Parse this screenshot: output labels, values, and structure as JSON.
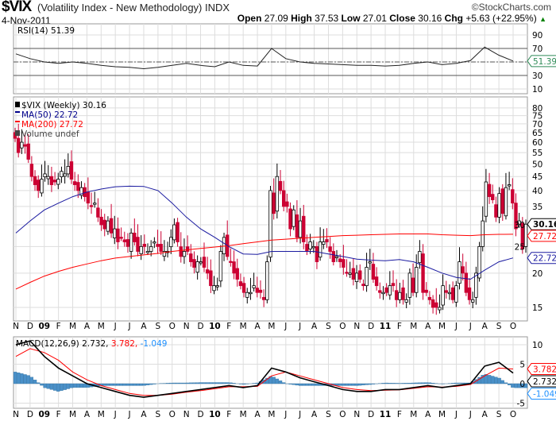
{
  "header": {
    "symbol": "$VIX",
    "description": "(Volatility Index - New Methodology) INDX",
    "date": "4-Nov-2011",
    "copyright": "©StockCharts.com",
    "open_label": "Open",
    "open": "27.09",
    "high_label": "High",
    "high": "37.53",
    "low_label": "Low",
    "low": "27.01",
    "close_label": "Close",
    "close": "30.16",
    "chg_label": "Chg",
    "chg": "+5.63 (+22.95%)",
    "chg_arrow": "▲",
    "up_color": "#008000"
  },
  "chart_data": [
    {
      "type": "line",
      "title": "RSI(14) 51.39",
      "ylim": [
        0,
        100
      ],
      "yticks": [
        90,
        70,
        30,
        10
      ],
      "ref_lines": [
        70,
        50,
        30
      ],
      "last": "51.39",
      "months": [
        "N",
        "D",
        "09",
        "F",
        "M",
        "A",
        "M",
        "J",
        "J",
        "A",
        "S",
        "O",
        "N",
        "D",
        "10",
        "F",
        "M",
        "A",
        "M",
        "J",
        "J",
        "A",
        "S",
        "O",
        "N",
        "D",
        "11",
        "F",
        "M",
        "A",
        "M",
        "J",
        "J",
        "A",
        "S",
        "O"
      ],
      "values": [
        62,
        55,
        50,
        48,
        50,
        48,
        45,
        43,
        42,
        40,
        42,
        45,
        48,
        45,
        43,
        50,
        45,
        44,
        70,
        55,
        50,
        48,
        47,
        46,
        45,
        45,
        44,
        45,
        48,
        50,
        46,
        48,
        52,
        72,
        60,
        51.39
      ]
    },
    {
      "type": "candlestick",
      "legend": [
        {
          "text": "$VIX (Weekly) 30.16",
          "color": "#000000"
        },
        {
          "text": "MA(50) 22.72",
          "color": "#00008b"
        },
        {
          "text": "MA(200) 27.72",
          "color": "#ff0000"
        },
        {
          "text": "Volume undef",
          "color": "#444444"
        }
      ],
      "scale": "log",
      "ylim": [
        13.5,
        83
      ],
      "yticks": [
        80,
        75,
        70,
        65,
        60,
        55,
        50,
        45,
        40,
        35,
        30,
        25,
        20,
        15
      ],
      "weekly_close": [
        62,
        55,
        60,
        58,
        52,
        45,
        42,
        40,
        44,
        46,
        45,
        42,
        43,
        44,
        47,
        46,
        49,
        44,
        42,
        40,
        41,
        38,
        36,
        35,
        36,
        32,
        30,
        29,
        31,
        28,
        29,
        26,
        27,
        26,
        25,
        28,
        26,
        24,
        25,
        25,
        24,
        25,
        26,
        25,
        24,
        24,
        24,
        27,
        30,
        26,
        23,
        24,
        24,
        22,
        21,
        22,
        22,
        21,
        20,
        18,
        18,
        18,
        24,
        27,
        23,
        22,
        20,
        19,
        18,
        17,
        17,
        17,
        18,
        17,
        17,
        16,
        22,
        40,
        33,
        45,
        40,
        35,
        35,
        29,
        34,
        27,
        31,
        26,
        24,
        26,
        25,
        22,
        26,
        26,
        26,
        24,
        22,
        23,
        22,
        21,
        20,
        20,
        19,
        20,
        19,
        18,
        21,
        22,
        19,
        18,
        17,
        17,
        17,
        18,
        18,
        16,
        17,
        16,
        16,
        20,
        17,
        21,
        24,
        17,
        17,
        16,
        15,
        15,
        15,
        18,
        17,
        17,
        16,
        18,
        22,
        20,
        17,
        16,
        16,
        20,
        25,
        31,
        43,
        38,
        37,
        32,
        39,
        33,
        41,
        42,
        36,
        29,
        31,
        24.5,
        30.16
      ],
      "ma50_monthly": [
        28,
        31,
        34,
        36,
        38,
        39.5,
        40.5,
        41.3,
        41.5,
        41.4,
        40,
        36,
        32,
        29,
        27,
        25,
        23.5,
        23.4,
        24,
        24,
        24,
        24,
        23.5,
        23,
        22.5,
        22.3,
        22.2,
        22.4,
        22,
        21,
        20,
        19.3,
        19,
        20.5,
        22,
        22.72
      ],
      "ma200_monthly": [
        17.5,
        18.5,
        19.5,
        20.3,
        21,
        21.6,
        22.2,
        22.7,
        23,
        23.3,
        23.6,
        24,
        24.3,
        24.6,
        24.9,
        25.2,
        25.6,
        26,
        26.4,
        26.6,
        26.8,
        27,
        27.2,
        27.4,
        27.5,
        27.6,
        27.7,
        27.8,
        27.8,
        27.8,
        27.6,
        27.5,
        27.4,
        27.6,
        27.7,
        27.72
      ],
      "last_labels": [
        "30.16",
        "27.72",
        "22.72"
      ]
    },
    {
      "type": "line",
      "title": "MACD(12,26,9)",
      "title_values": [
        {
          "text": "2.732,",
          "color": "#000000"
        },
        {
          "text": "3.782,",
          "color": "#ff0000"
        },
        {
          "text": "-1.049",
          "color": "#1e90ff"
        }
      ],
      "ylim": [
        -7,
        12
      ],
      "yticks": [
        10,
        5,
        0,
        -5
      ],
      "macd_monthly": [
        10,
        11,
        7,
        4,
        2,
        0,
        -1,
        -2,
        -3,
        -3.5,
        -3,
        -2.5,
        -2,
        -1.5,
        -1,
        -0.5,
        -1,
        -0.5,
        4,
        3,
        1.5,
        0.5,
        -0.5,
        -1.5,
        -2,
        -2,
        -1.5,
        -1.5,
        -1,
        -0.5,
        -1,
        -0.5,
        0,
        4.5,
        5.5,
        2.732
      ],
      "signal_monthly": [
        7,
        9,
        8,
        6,
        3,
        1,
        -0.5,
        -1.5,
        -2.5,
        -3,
        -3,
        -2.7,
        -2.2,
        -1.8,
        -1.3,
        -0.8,
        -0.8,
        -0.7,
        2,
        3,
        2,
        1,
        0,
        -1,
        -1.5,
        -1.8,
        -1.7,
        -1.6,
        -1.2,
        -0.8,
        -0.9,
        -0.7,
        -0.2,
        2,
        4,
        3.782
      ],
      "last_labels": [
        "3.782",
        "2.732",
        "-1.049"
      ],
      "hist_color": "#4a90c8"
    }
  ]
}
